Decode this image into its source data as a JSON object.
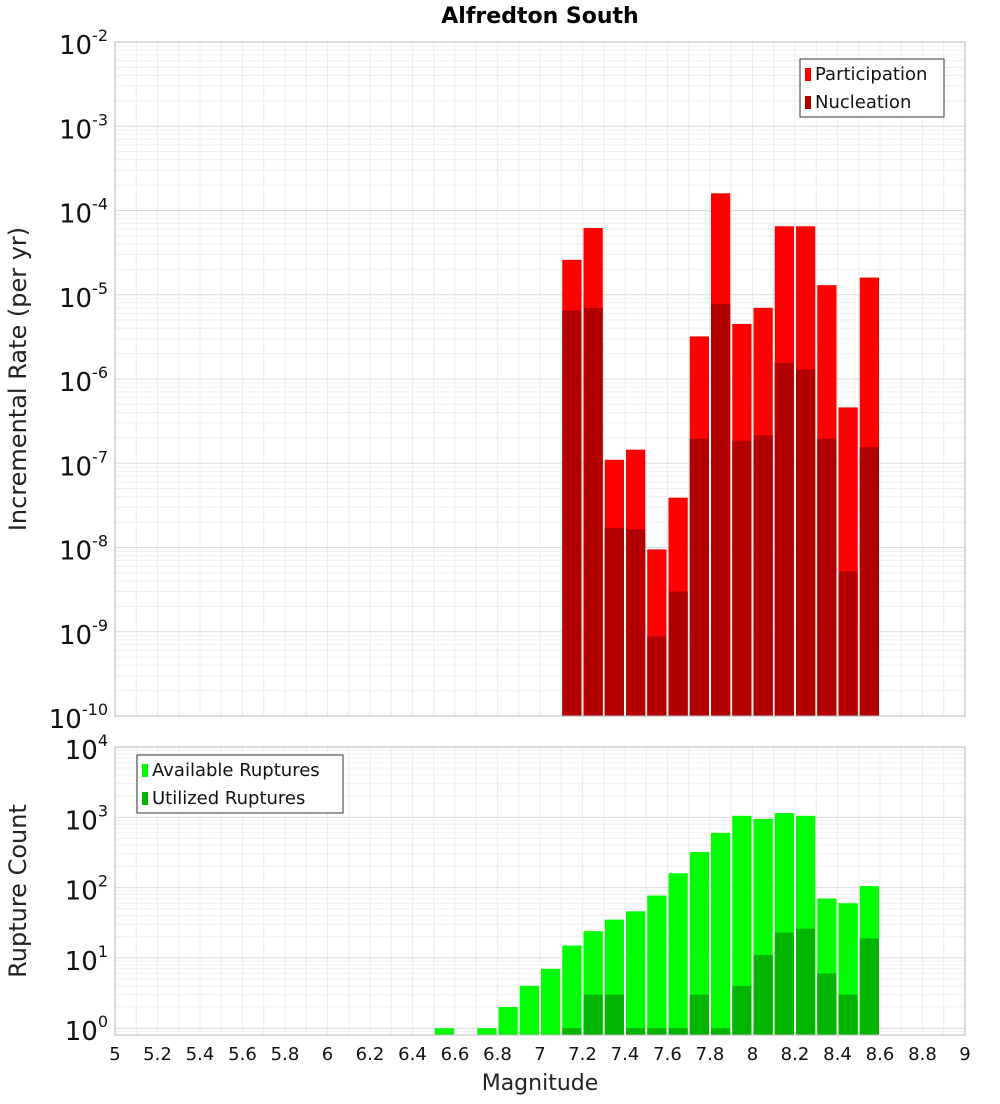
{
  "chart_data": [
    {
      "type": "bar",
      "title": "Alfredton South",
      "xlabel": "",
      "ylabel": "Incremental Rate (per yr)",
      "yscale": "log",
      "ylim": [
        1e-10,
        0.01
      ],
      "xlim": [
        5,
        9
      ],
      "ytick_exponents": [
        "-10",
        "-9",
        "-8",
        "-7",
        "-6",
        "-5",
        "-4",
        "-3",
        "-2"
      ],
      "grid": true,
      "legend_position": "top-right",
      "bar_width": 0.1,
      "x": [
        7.15,
        7.25,
        7.35,
        7.45,
        7.55,
        7.65,
        7.75,
        7.85,
        7.95,
        8.05,
        8.15,
        8.25,
        8.35,
        8.45,
        8.55
      ],
      "series": [
        {
          "name": "Participation",
          "color": "#ff0000",
          "values": [
            2.6e-05,
            6.2e-05,
            1.1e-07,
            1.45e-07,
            9.5e-09,
            3.9e-08,
            3.2e-06,
            0.00016,
            4.5e-06,
            7e-06,
            6.5e-05,
            6.5e-05,
            1.3e-05,
            4.6e-07,
            1.6e-05
          ]
        },
        {
          "name": "Nucleation",
          "color": "#b20000",
          "values": [
            6.5e-06,
            7e-06,
            1.7e-08,
            1.65e-08,
            8.8e-10,
            3e-09,
            1.95e-07,
            7.8e-06,
            1.85e-07,
            2.15e-07,
            1.55e-06,
            1.3e-06,
            1.95e-07,
            5.2e-09,
            1.55e-07
          ]
        }
      ]
    },
    {
      "type": "bar",
      "title": "",
      "xlabel": "Magnitude",
      "ylabel": "Rupture Count",
      "yscale": "log",
      "ylim": [
        0.8,
        10000
      ],
      "xlim": [
        5,
        9
      ],
      "ytick_exponents": [
        "0",
        "1",
        "2",
        "3",
        "4"
      ],
      "grid": true,
      "legend_position": "top-left",
      "bar_width": 0.1,
      "x": [
        6.55,
        6.65,
        6.75,
        6.85,
        6.95,
        7.05,
        7.15,
        7.25,
        7.35,
        7.45,
        7.55,
        7.65,
        7.75,
        7.85,
        7.95,
        8.05,
        8.15,
        8.25,
        8.35,
        8.45,
        8.55
      ],
      "xticks": [
        "5",
        "5.2",
        "5.4",
        "5.6",
        "5.8",
        "6",
        "6.2",
        "6.4",
        "6.6",
        "6.8",
        "7",
        "7.2",
        "7.4",
        "7.6",
        "7.8",
        "8",
        "8.2",
        "8.4",
        "8.6",
        "8.8",
        "9"
      ],
      "series": [
        {
          "name": "Available Ruptures",
          "color": "#00ff00",
          "values": [
            1,
            0,
            1,
            2,
            4,
            7,
            15,
            24,
            35,
            46,
            77,
            160,
            320,
            600,
            1050,
            950,
            1150,
            1050,
            70,
            60,
            105
          ]
        },
        {
          "name": "Utilized Ruptures",
          "color": "#00b400",
          "values": [
            0,
            0,
            0,
            0,
            0,
            0,
            1,
            3,
            3,
            1,
            1,
            1,
            3,
            1,
            4,
            11,
            23,
            26,
            6,
            3,
            19
          ]
        }
      ]
    }
  ]
}
